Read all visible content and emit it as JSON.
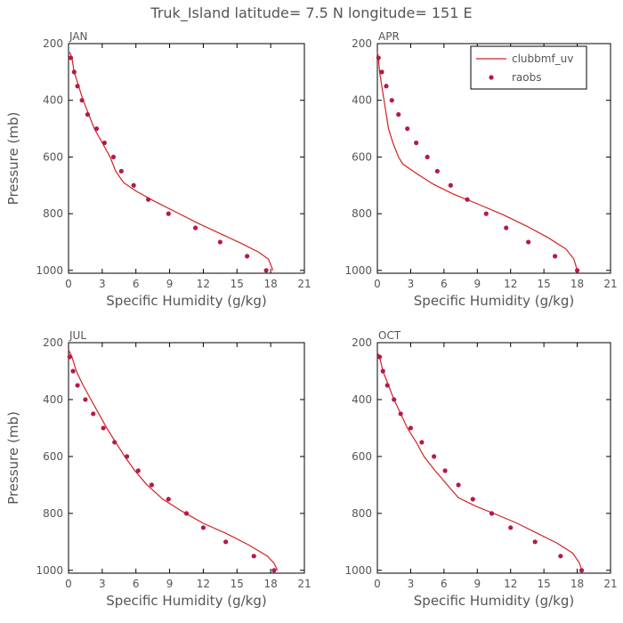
{
  "title": "Truk_Island  latitude= 7.5 N longitude= 151 E",
  "colors": {
    "model": "#d42020",
    "obs": "#b5194a",
    "axis": "#000000",
    "text": "#555555"
  },
  "chart_data": [
    {
      "type": "line",
      "panel_label": "JAN",
      "xlabel": "Specific Humidity (g/kg)",
      "ylabel": "Pressure (mb)",
      "xlim": [
        0,
        21
      ],
      "ylim": [
        1010,
        200
      ],
      "xticks": [
        0,
        3,
        6,
        9,
        12,
        15,
        18,
        21
      ],
      "yticks": [
        200,
        400,
        600,
        800,
        1000
      ],
      "series": [
        {
          "name": "clubbmf_uv",
          "style": "line",
          "points": [
            [
              0.1,
              230
            ],
            [
              0.3,
              250
            ],
            [
              0.5,
              300
            ],
            [
              0.9,
              350
            ],
            [
              1.3,
              400
            ],
            [
              1.8,
              450
            ],
            [
              2.3,
              500
            ],
            [
              3.0,
              550
            ],
            [
              3.7,
              600
            ],
            [
              4.2,
              650
            ],
            [
              4.9,
              690
            ],
            [
              6.0,
              720
            ],
            [
              7.6,
              755
            ],
            [
              9.6,
              795
            ],
            [
              11.6,
              835
            ],
            [
              13.5,
              870
            ],
            [
              15.4,
              905
            ],
            [
              16.9,
              935
            ],
            [
              17.8,
              960
            ],
            [
              18.2,
              1000
            ]
          ]
        },
        {
          "name": "raobs",
          "style": "markers",
          "points": [
            [
              0.2,
              250
            ],
            [
              0.5,
              300
            ],
            [
              0.8,
              350
            ],
            [
              1.2,
              400
            ],
            [
              1.7,
              450
            ],
            [
              2.5,
              500
            ],
            [
              3.2,
              550
            ],
            [
              4.0,
              600
            ],
            [
              4.7,
              650
            ],
            [
              5.8,
              700
            ],
            [
              7.1,
              750
            ],
            [
              8.9,
              800
            ],
            [
              11.3,
              850
            ],
            [
              13.5,
              900
            ],
            [
              15.9,
              950
            ],
            [
              17.6,
              1000
            ]
          ]
        }
      ]
    },
    {
      "type": "line",
      "panel_label": "APR",
      "xlabel": "Specific Humidity (g/kg)",
      "ylabel": "",
      "xlim": [
        0,
        21
      ],
      "ylim": [
        1010,
        200
      ],
      "xticks": [
        0,
        3,
        6,
        9,
        12,
        15,
        18,
        21
      ],
      "yticks": [
        200,
        400,
        600,
        800,
        1000
      ],
      "legend": {
        "position": "top-right",
        "entries": [
          "clubbmf_uv",
          "raobs"
        ]
      },
      "series": [
        {
          "name": "clubbmf_uv",
          "style": "line",
          "points": [
            [
              0.0,
              230
            ],
            [
              0.1,
              250
            ],
            [
              0.2,
              300
            ],
            [
              0.4,
              350
            ],
            [
              0.6,
              400
            ],
            [
              0.8,
              450
            ],
            [
              1.0,
              500
            ],
            [
              1.4,
              550
            ],
            [
              1.9,
              600
            ],
            [
              2.3,
              625
            ],
            [
              3.6,
              660
            ],
            [
              5.0,
              695
            ],
            [
              6.8,
              730
            ],
            [
              9.0,
              765
            ],
            [
              11.4,
              805
            ],
            [
              13.5,
              845
            ],
            [
              15.4,
              885
            ],
            [
              17.0,
              925
            ],
            [
              17.7,
              960
            ],
            [
              18.0,
              1000
            ]
          ]
        },
        {
          "name": "raobs",
          "style": "markers",
          "points": [
            [
              0.1,
              250
            ],
            [
              0.4,
              300
            ],
            [
              0.8,
              350
            ],
            [
              1.3,
              400
            ],
            [
              1.9,
              450
            ],
            [
              2.7,
              500
            ],
            [
              3.5,
              550
            ],
            [
              4.5,
              600
            ],
            [
              5.4,
              650
            ],
            [
              6.6,
              700
            ],
            [
              8.1,
              750
            ],
            [
              9.8,
              800
            ],
            [
              11.6,
              850
            ],
            [
              13.6,
              900
            ],
            [
              16.0,
              950
            ],
            [
              18.0,
              1000
            ]
          ]
        }
      ]
    },
    {
      "type": "line",
      "panel_label": "JUL",
      "xlabel": "Specific Humidity (g/kg)",
      "ylabel": "Pressure (mb)",
      "xlim": [
        0,
        21
      ],
      "ylim": [
        1010,
        200
      ],
      "xticks": [
        0,
        3,
        6,
        9,
        12,
        15,
        18,
        21
      ],
      "yticks": [
        200,
        400,
        600,
        800,
        1000
      ],
      "series": [
        {
          "name": "clubbmf_uv",
          "style": "line",
          "points": [
            [
              0.0,
              225
            ],
            [
              0.3,
              250
            ],
            [
              0.7,
              300
            ],
            [
              1.3,
              350
            ],
            [
              2.0,
              400
            ],
            [
              2.7,
              450
            ],
            [
              3.4,
              500
            ],
            [
              4.2,
              550
            ],
            [
              5.0,
              600
            ],
            [
              5.9,
              650
            ],
            [
              7.0,
              700
            ],
            [
              8.4,
              750
            ],
            [
              10.0,
              790
            ],
            [
              12.0,
              835
            ],
            [
              14.0,
              870
            ],
            [
              16.0,
              910
            ],
            [
              17.7,
              950
            ],
            [
              18.3,
              975
            ],
            [
              18.6,
              1000
            ]
          ]
        },
        {
          "name": "raobs",
          "style": "markers",
          "points": [
            [
              0.1,
              250
            ],
            [
              0.4,
              300
            ],
            [
              0.8,
              350
            ],
            [
              1.5,
              400
            ],
            [
              2.2,
              450
            ],
            [
              3.1,
              500
            ],
            [
              4.1,
              550
            ],
            [
              5.2,
              600
            ],
            [
              6.2,
              650
            ],
            [
              7.4,
              700
            ],
            [
              8.9,
              750
            ],
            [
              10.5,
              800
            ],
            [
              12.0,
              850
            ],
            [
              14.0,
              900
            ],
            [
              16.5,
              950
            ],
            [
              18.3,
              1000
            ]
          ]
        }
      ]
    },
    {
      "type": "line",
      "panel_label": "OCT",
      "xlabel": "Specific Humidity (g/kg)",
      "ylabel": "",
      "xlim": [
        0,
        21
      ],
      "ylim": [
        1010,
        200
      ],
      "xticks": [
        0,
        3,
        6,
        9,
        12,
        15,
        18,
        21
      ],
      "yticks": [
        200,
        400,
        600,
        800,
        1000
      ],
      "series": [
        {
          "name": "clubbmf_uv",
          "style": "line",
          "points": [
            [
              0.0,
              235
            ],
            [
              0.2,
              250
            ],
            [
              0.5,
              300
            ],
            [
              1.0,
              350
            ],
            [
              1.5,
              400
            ],
            [
              2.1,
              450
            ],
            [
              2.7,
              500
            ],
            [
              3.5,
              550
            ],
            [
              4.2,
              600
            ],
            [
              5.2,
              650
            ],
            [
              6.3,
              700
            ],
            [
              7.3,
              745
            ],
            [
              8.9,
              775
            ],
            [
              10.8,
              805
            ],
            [
              12.6,
              835
            ],
            [
              14.4,
              870
            ],
            [
              16.2,
              905
            ],
            [
              17.6,
              940
            ],
            [
              18.2,
              975
            ],
            [
              18.4,
              1000
            ]
          ]
        },
        {
          "name": "raobs",
          "style": "markers",
          "points": [
            [
              0.2,
              250
            ],
            [
              0.5,
              300
            ],
            [
              0.9,
              350
            ],
            [
              1.5,
              400
            ],
            [
              2.1,
              450
            ],
            [
              3.0,
              500
            ],
            [
              4.0,
              550
            ],
            [
              5.1,
              600
            ],
            [
              6.1,
              650
            ],
            [
              7.3,
              700
            ],
            [
              8.6,
              750
            ],
            [
              10.3,
              800
            ],
            [
              12.0,
              850
            ],
            [
              14.2,
              900
            ],
            [
              16.5,
              950
            ],
            [
              18.4,
              1000
            ]
          ]
        }
      ]
    }
  ]
}
